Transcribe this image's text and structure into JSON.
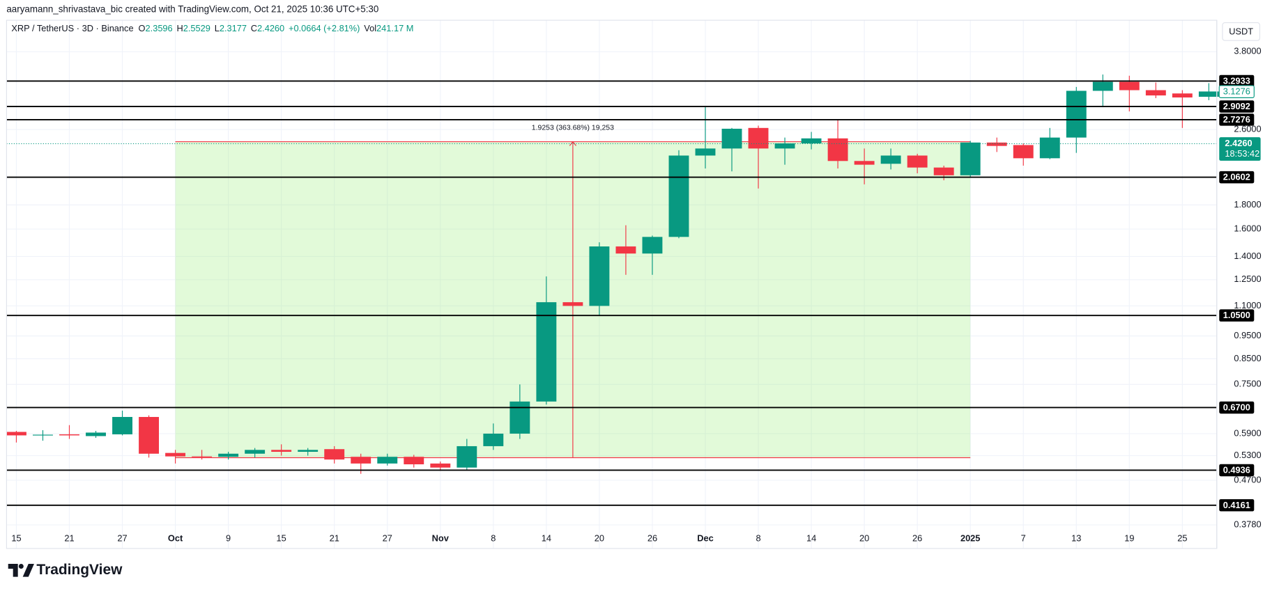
{
  "header": {
    "credit": "aaryamann_shrivastava_bic created with TradingView.com, Oct 21, 2025 10:36 UTC+5:30"
  },
  "chart_data": {
    "type": "candlestick",
    "title": "XRP / TetherUS · 3D · Binance",
    "legend": {
      "o_label": "O",
      "open": "2.3596",
      "h_label": "H",
      "high": "2.5529",
      "l_label": "L",
      "low": "2.3177",
      "c_label": "C",
      "close": "2.4260",
      "change": "+0.0664 (+2.81%)",
      "vol_label": "Vol",
      "volume": "241.17 M"
    },
    "currency": "USDT",
    "open": [
      0.595,
      0.585,
      0.588,
      0.583,
      0.588,
      0.64,
      0.537,
      0.528,
      0.527,
      0.535,
      0.545,
      0.54,
      0.547,
      0.527,
      0.51,
      0.527,
      0.51,
      0.5,
      0.555,
      0.59,
      0.69,
      1.12,
      1.1,
      1.47,
      1.42,
      1.54,
      2.29,
      2.37,
      2.62,
      2.37,
      2.43,
      2.49,
      2.23,
      2.2,
      2.29,
      2.16,
      2.08,
      2.44,
      2.41,
      2.26,
      2.5,
      3.14,
      3.28,
      3.15,
      3.1,
      3.05
    ],
    "high": [
      0.598,
      0.6,
      0.615,
      0.598,
      0.66,
      0.645,
      0.545,
      0.545,
      0.54,
      0.55,
      0.56,
      0.55,
      0.555,
      0.535,
      0.535,
      0.532,
      0.515,
      0.575,
      0.62,
      0.75,
      1.27,
      1.125,
      1.5,
      1.63,
      1.55,
      2.35,
      2.9,
      2.62,
      2.65,
      2.5,
      2.57,
      2.73,
      2.37,
      2.37,
      2.31,
      2.18,
      2.46,
      2.5,
      2.43,
      2.62,
      3.2,
      3.4,
      3.38,
      3.27,
      3.15,
      3.26
    ],
    "low": [
      0.565,
      0.57,
      0.575,
      0.578,
      0.585,
      0.525,
      0.51,
      0.52,
      0.52,
      0.525,
      0.53,
      0.53,
      0.51,
      0.485,
      0.505,
      0.5,
      0.492,
      0.495,
      0.545,
      0.575,
      0.68,
      1.09,
      1.05,
      1.28,
      1.28,
      1.53,
      2.15,
      2.12,
      1.95,
      2.19,
      2.36,
      2.15,
      1.99,
      2.14,
      2.1,
      2.03,
      2.06,
      2.33,
      2.18,
      2.25,
      2.32,
      2.9,
      2.84,
      3.03,
      2.62,
      3.0
    ],
    "close": [
      0.585,
      0.587,
      0.585,
      0.593,
      0.64,
      0.535,
      0.528,
      0.526,
      0.535,
      0.545,
      0.54,
      0.545,
      0.52,
      0.51,
      0.527,
      0.508,
      0.5,
      0.555,
      0.59,
      0.69,
      1.12,
      1.1,
      1.47,
      1.42,
      1.54,
      2.29,
      2.37,
      2.61,
      2.37,
      2.43,
      2.49,
      2.23,
      2.19,
      2.29,
      2.16,
      2.08,
      2.44,
      2.4,
      2.26,
      2.5,
      3.14,
      3.28,
      3.15,
      3.07,
      3.04,
      3.13
    ],
    "up_color": "#089981",
    "down_color": "#f23645",
    "xlim": [
      -0.37,
      45.3
    ],
    "xticks": [
      {
        "value": 0,
        "label": "15"
      },
      {
        "value": 2,
        "label": "21"
      },
      {
        "value": 4,
        "label": "27"
      },
      {
        "value": 6,
        "label": "Oct"
      },
      {
        "value": 8,
        "label": "9"
      },
      {
        "value": 10,
        "label": "15"
      },
      {
        "value": 12,
        "label": "21"
      },
      {
        "value": 14,
        "label": "27"
      },
      {
        "value": 16,
        "label": "Nov"
      },
      {
        "value": 18,
        "label": "8"
      },
      {
        "value": 20,
        "label": "14"
      },
      {
        "value": 22,
        "label": "20"
      },
      {
        "value": 24,
        "label": "26"
      },
      {
        "value": 26,
        "label": "Dec"
      },
      {
        "value": 28,
        "label": "8"
      },
      {
        "value": 30,
        "label": "14"
      },
      {
        "value": 32,
        "label": "20"
      },
      {
        "value": 34,
        "label": "26"
      },
      {
        "value": 36,
        "label": "2025"
      },
      {
        "value": 38,
        "label": "7"
      },
      {
        "value": 40,
        "label": "13"
      },
      {
        "value": 42,
        "label": "19"
      },
      {
        "value": 44,
        "label": "25"
      }
    ],
    "ylim": [
      0.337,
      4.43
    ],
    "log_scale": true,
    "yticks": [
      {
        "value": 3.8,
        "label": "3.8000"
      },
      {
        "value": 2.6,
        "label": "2.6000"
      },
      {
        "value": 1.8,
        "label": "1.8000"
      },
      {
        "value": 1.6,
        "label": "1.6000"
      },
      {
        "value": 1.4,
        "label": "1.4000"
      },
      {
        "value": 1.25,
        "label": "1.2500"
      },
      {
        "value": 1.1,
        "label": "1.1000"
      },
      {
        "value": 0.95,
        "label": "0.9500"
      },
      {
        "value": 0.85,
        "label": "0.8500"
      },
      {
        "value": 0.75,
        "label": "0.7500"
      },
      {
        "value": 0.59,
        "label": "0.5900"
      },
      {
        "value": 0.53,
        "label": "0.5300"
      },
      {
        "value": 0.47,
        "label": "0.4700"
      },
      {
        "value": 0.378,
        "label": "0.3780"
      }
    ],
    "levels": [
      {
        "value": 3.2933,
        "label": "3.2933"
      },
      {
        "value": 2.9092,
        "label": "2.9092"
      },
      {
        "value": 2.7276,
        "label": "2.7276"
      },
      {
        "value": 2.0602,
        "label": "2.0602"
      },
      {
        "value": 1.05,
        "label": "1.0500"
      },
      {
        "value": 0.67,
        "label": "0.6700"
      },
      {
        "value": 0.4936,
        "label": "0.4936"
      },
      {
        "value": 0.4161,
        "label": "0.4161"
      }
    ],
    "last_price": {
      "value": 3.1276,
      "label": "3.1276"
    },
    "current_price": {
      "value": 2.426,
      "label": "2.4260",
      "countdown": "18:53:42"
    },
    "measure": {
      "label": "1.9253 (363.68%) 19,253",
      "from": 0.5247,
      "to": 2.45,
      "start": 6,
      "end": 36
    },
    "grid": true
  },
  "footer": {
    "brand": "TradingView"
  }
}
